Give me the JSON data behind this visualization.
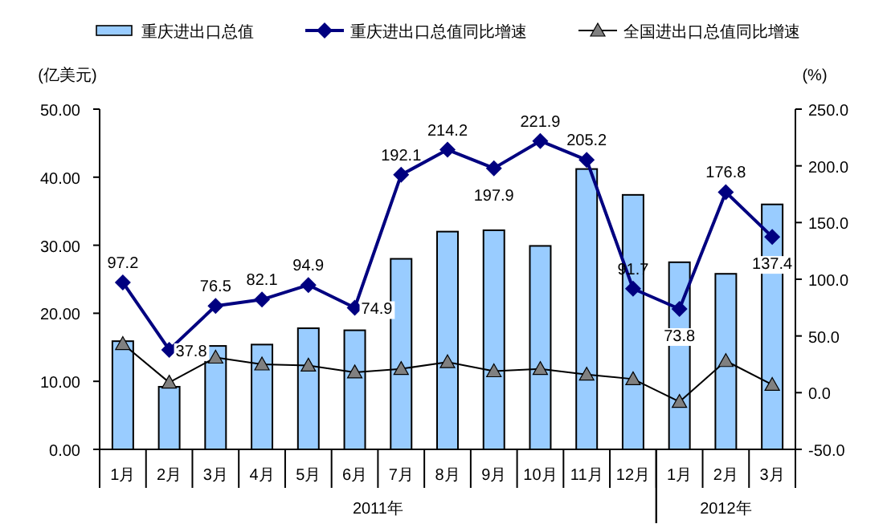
{
  "chart_data": {
    "type": "bar",
    "categories": [
      "1月",
      "2月",
      "3月",
      "4月",
      "5月",
      "6月",
      "7月",
      "8月",
      "9月",
      "10月",
      "11月",
      "12月",
      "1月",
      "2月",
      "3月"
    ],
    "series": [
      {
        "name": "重庆进出口总值",
        "color": "#99ccff",
        "values": [
          15.9,
          9.2,
          15.2,
          15.4,
          17.8,
          17.5,
          28.0,
          32.0,
          32.2,
          29.9,
          41.2,
          37.4,
          27.5,
          25.8,
          36.0
        ]
      },
      {
        "name": "重庆进出口总值同比增速",
        "type": "line",
        "axis": "y2",
        "color": "#000080",
        "marker": "diamond",
        "data_labels": true,
        "values": [
          97.2,
          37.8,
          76.5,
          82.1,
          94.9,
          74.9,
          192.1,
          214.2,
          197.9,
          221.9,
          205.2,
          91.7,
          73.8,
          176.8,
          137.4
        ]
      },
      {
        "name": "全国进出口总值同比增速",
        "type": "line",
        "axis": "y2",
        "color": "#000000",
        "marker": "triangle",
        "values": [
          43,
          9,
          31,
          25,
          24,
          18,
          21,
          27,
          19,
          21,
          16,
          12,
          -8,
          28,
          7
        ]
      }
    ],
    "ylabel": "(亿美元)",
    "y2label": "(%)",
    "ylim": [
      0,
      50
    ],
    "yticks": [
      {
        "value": 0,
        "label": "0.00"
      },
      {
        "value": 10,
        "label": "10.00"
      },
      {
        "value": 20,
        "label": "20.00"
      },
      {
        "value": 30,
        "label": "30.00"
      },
      {
        "value": 40,
        "label": "40.00"
      },
      {
        "value": 50,
        "label": "50.00"
      }
    ],
    "y2lim": [
      -50,
      250
    ],
    "y2ticks": [
      {
        "value": -50,
        "label": "-50.0"
      },
      {
        "value": 0,
        "label": "0.0"
      },
      {
        "value": 50,
        "label": "50.0"
      },
      {
        "value": 100,
        "label": "100.0"
      },
      {
        "value": 150,
        "label": "150.0"
      },
      {
        "value": 200,
        "label": "200.0"
      },
      {
        "value": 250,
        "label": "250.0"
      }
    ],
    "annotations": [
      "2011年",
      "2012年"
    ],
    "legend": "top",
    "grid": false
  }
}
